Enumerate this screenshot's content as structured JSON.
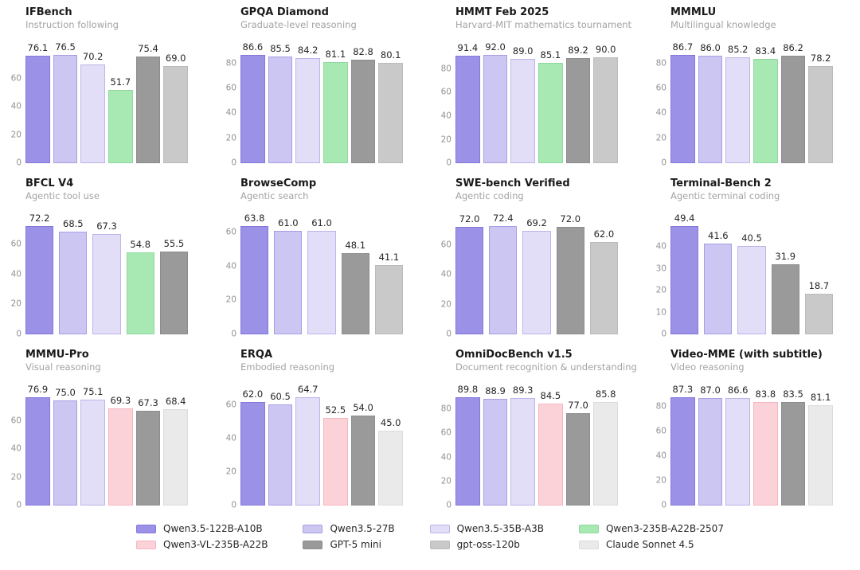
{
  "page": {
    "background": "#ffffff"
  },
  "models": [
    {
      "name": "Qwen3.5-122B-A10B",
      "color": "#9b92e8",
      "border": "#8378da"
    },
    {
      "name": "Qwen3.5-27B",
      "color": "#ccc6f2",
      "border": "#a79fe4"
    },
    {
      "name": "Qwen3.5-35B-A3B",
      "color": "#e2def7",
      "border": "#bcb5ea"
    },
    {
      "name": "Qwen3-235B-A22B-2507",
      "color": "#a8e9b3",
      "border": "#8fd9a0"
    },
    {
      "name": "Qwen3-VL-235B-A22B",
      "color": "#fcd2d9",
      "border": "#f5b5c0"
    },
    {
      "name": "GPT-5 mini",
      "color": "#9a9a9a",
      "border": "#8c8c8c"
    },
    {
      "name": "gpt-oss-120b",
      "color": "#c9c9c9",
      "border": "#bbbbbb"
    },
    {
      "name": "Claude Sonnet 4.5",
      "color": "#eaeaea",
      "border": "#dcdcdc"
    }
  ],
  "legend": {
    "order": [
      0,
      1,
      2,
      3,
      4,
      5,
      6,
      7
    ]
  },
  "chart_data": [
    {
      "type": "bar",
      "title": "IFBench",
      "subtitle": "Instruction following",
      "ylim": [
        0,
        85.7
      ],
      "yticks": [
        0,
        20,
        40,
        60
      ],
      "grid": false,
      "bars": [
        {
          "model": 0,
          "value": 76.1,
          "label": "76.1"
        },
        {
          "model": 1,
          "value": 76.5,
          "label": "76.5"
        },
        {
          "model": 2,
          "value": 70.2,
          "label": "70.2"
        },
        {
          "model": 3,
          "value": 51.7,
          "label": "51.7"
        },
        {
          "model": 5,
          "value": 75.4,
          "label": "75.4"
        },
        {
          "model": 6,
          "value": 69.0,
          "label": "69.0"
        }
      ]
    },
    {
      "type": "bar",
      "title": "GPQA Diamond",
      "subtitle": "Graduate-level reasoning",
      "ylim": [
        0,
        97.0
      ],
      "yticks": [
        0,
        20,
        40,
        60,
        80
      ],
      "grid": false,
      "bars": [
        {
          "model": 0,
          "value": 86.6,
          "label": "86.6"
        },
        {
          "model": 1,
          "value": 85.5,
          "label": "85.5"
        },
        {
          "model": 2,
          "value": 84.2,
          "label": "84.2"
        },
        {
          "model": 3,
          "value": 81.1,
          "label": "81.1"
        },
        {
          "model": 5,
          "value": 82.8,
          "label": "82.8"
        },
        {
          "model": 6,
          "value": 80.1,
          "label": "80.1"
        }
      ]
    },
    {
      "type": "bar",
      "title": "HMMT Feb 2025",
      "subtitle": "Harvard-MIT mathematics tournament",
      "ylim": [
        0,
        103.0
      ],
      "yticks": [
        0,
        20,
        40,
        60,
        80
      ],
      "grid": false,
      "bars": [
        {
          "model": 0,
          "value": 91.4,
          "label": "91.4"
        },
        {
          "model": 1,
          "value": 92.0,
          "label": "92.0"
        },
        {
          "model": 2,
          "value": 89.0,
          "label": "89.0"
        },
        {
          "model": 3,
          "value": 85.1,
          "label": "85.1"
        },
        {
          "model": 5,
          "value": 89.2,
          "label": "89.2"
        },
        {
          "model": 6,
          "value": 90.0,
          "label": "90.0"
        }
      ]
    },
    {
      "type": "bar",
      "title": "MMMLU",
      "subtitle": "Multilingual knowledge",
      "ylim": [
        0,
        97.1
      ],
      "yticks": [
        0,
        20,
        40,
        60,
        80
      ],
      "grid": false,
      "bars": [
        {
          "model": 0,
          "value": 86.7,
          "label": "86.7"
        },
        {
          "model": 1,
          "value": 86.0,
          "label": "86.0"
        },
        {
          "model": 2,
          "value": 85.2,
          "label": "85.2"
        },
        {
          "model": 3,
          "value": 83.4,
          "label": "83.4"
        },
        {
          "model": 5,
          "value": 86.2,
          "label": "86.2"
        },
        {
          "model": 6,
          "value": 78.2,
          "label": "78.2"
        }
      ]
    },
    {
      "type": "bar",
      "title": "BFCL V4",
      "subtitle": "Agentic tool use",
      "ylim": [
        0,
        80.9
      ],
      "yticks": [
        0,
        20,
        40,
        60
      ],
      "grid": false,
      "bars": [
        {
          "model": 0,
          "value": 72.2,
          "label": "72.2"
        },
        {
          "model": 1,
          "value": 68.5,
          "label": "68.5"
        },
        {
          "model": 2,
          "value": 67.3,
          "label": "67.3"
        },
        {
          "model": 3,
          "value": 54.8,
          "label": "54.8"
        },
        {
          "model": 5,
          "value": 55.5,
          "label": "55.5"
        }
      ]
    },
    {
      "type": "bar",
      "title": "BrowseComp",
      "subtitle": "Agentic search",
      "ylim": [
        0,
        71.5
      ],
      "yticks": [
        0,
        20,
        40,
        60
      ],
      "grid": false,
      "bars": [
        {
          "model": 0,
          "value": 63.8,
          "label": "63.8"
        },
        {
          "model": 1,
          "value": 61.0,
          "label": "61.0"
        },
        {
          "model": 2,
          "value": 61.0,
          "label": "61.0"
        },
        {
          "model": 5,
          "value": 48.1,
          "label": "48.1"
        },
        {
          "model": 6,
          "value": 41.1,
          "label": "41.1"
        }
      ]
    },
    {
      "type": "bar",
      "title": "SWE-bench Verified",
      "subtitle": "Agentic coding",
      "ylim": [
        0,
        81.1
      ],
      "yticks": [
        0,
        20,
        40,
        60
      ],
      "grid": false,
      "bars": [
        {
          "model": 0,
          "value": 72.0,
          "label": "72.0"
        },
        {
          "model": 1,
          "value": 72.4,
          "label": "72.4"
        },
        {
          "model": 2,
          "value": 69.2,
          "label": "69.2"
        },
        {
          "model": 5,
          "value": 72.0,
          "label": "72.0"
        },
        {
          "model": 6,
          "value": 62.0,
          "label": "62.0"
        }
      ]
    },
    {
      "type": "bar",
      "title": "Terminal-Bench 2",
      "subtitle": "Agentic terminal coding",
      "ylim": [
        0,
        55.3
      ],
      "yticks": [
        0,
        10,
        20,
        30,
        40
      ],
      "grid": false,
      "bars": [
        {
          "model": 0,
          "value": 49.4,
          "label": "49.4"
        },
        {
          "model": 1,
          "value": 41.6,
          "label": "41.6"
        },
        {
          "model": 2,
          "value": 40.5,
          "label": "40.5"
        },
        {
          "model": 5,
          "value": 31.9,
          "label": "31.9"
        },
        {
          "model": 6,
          "value": 18.7,
          "label": "18.7"
        }
      ]
    },
    {
      "type": "bar",
      "title": "MMMU-Pro",
      "subtitle": "Visual reasoning",
      "ylim": [
        0,
        86.1
      ],
      "yticks": [
        0,
        20,
        40,
        60
      ],
      "grid": false,
      "bars": [
        {
          "model": 0,
          "value": 76.9,
          "label": "76.9"
        },
        {
          "model": 1,
          "value": 75.0,
          "label": "75.0"
        },
        {
          "model": 2,
          "value": 75.1,
          "label": "75.1"
        },
        {
          "model": 4,
          "value": 69.3,
          "label": "69.3"
        },
        {
          "model": 5,
          "value": 67.3,
          "label": "67.3"
        },
        {
          "model": 7,
          "value": 68.4,
          "label": "68.4"
        }
      ]
    },
    {
      "type": "bar",
      "title": "ERQA",
      "subtitle": "Embodied reasoning",
      "ylim": [
        0,
        72.5
      ],
      "yticks": [
        0,
        20,
        40,
        60
      ],
      "grid": false,
      "bars": [
        {
          "model": 0,
          "value": 62.0,
          "label": "62.0"
        },
        {
          "model": 1,
          "value": 60.5,
          "label": "60.5"
        },
        {
          "model": 2,
          "value": 64.7,
          "label": "64.7"
        },
        {
          "model": 4,
          "value": 52.5,
          "label": "52.5"
        },
        {
          "model": 5,
          "value": 54.0,
          "label": "54.0"
        },
        {
          "model": 7,
          "value": 45.0,
          "label": "45.0"
        }
      ]
    },
    {
      "type": "bar",
      "title": "OmniDocBench v1.5",
      "subtitle": "Document recognition & understanding",
      "ylim": [
        0,
        100.6
      ],
      "yticks": [
        0,
        20,
        40,
        60,
        80
      ],
      "grid": false,
      "bars": [
        {
          "model": 0,
          "value": 89.8,
          "label": "89.8"
        },
        {
          "model": 1,
          "value": 88.9,
          "label": "88.9"
        },
        {
          "model": 2,
          "value": 89.3,
          "label": "89.3"
        },
        {
          "model": 4,
          "value": 84.5,
          "label": "84.5"
        },
        {
          "model": 5,
          "value": 77.0,
          "label": "77.0"
        },
        {
          "model": 7,
          "value": 85.8,
          "label": "85.8"
        }
      ]
    },
    {
      "type": "bar",
      "title": "Video-MME (with subtitle)",
      "subtitle": "Video reasoning",
      "ylim": [
        0,
        97.8
      ],
      "yticks": [
        0,
        20,
        40,
        60,
        80
      ],
      "grid": false,
      "bars": [
        {
          "model": 0,
          "value": 87.3,
          "label": "87.3"
        },
        {
          "model": 1,
          "value": 87.0,
          "label": "87.0"
        },
        {
          "model": 2,
          "value": 86.6,
          "label": "86.6"
        },
        {
          "model": 4,
          "value": 83.8,
          "label": "83.8"
        },
        {
          "model": 5,
          "value": 83.5,
          "label": "83.5"
        },
        {
          "model": 7,
          "value": 81.1,
          "label": "81.1"
        }
      ]
    }
  ]
}
